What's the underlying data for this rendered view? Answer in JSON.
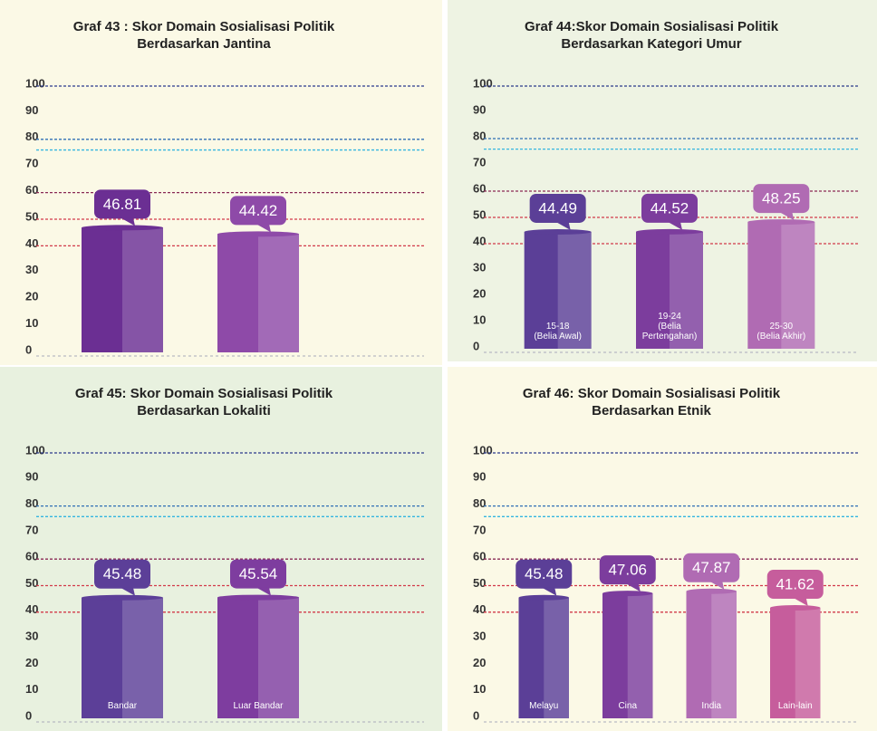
{
  "chart_data": [
    {
      "type": "bar",
      "title": "Graf 43 :  Skor Domain Sosialisasi Politik Berdasarkan Jantina",
      "categories": [
        null,
        null
      ],
      "values": [
        46.81,
        44.42
      ],
      "colors": [
        "#6b2f93",
        "#8e4aa8"
      ],
      "ylim": [
        0,
        100
      ],
      "yticks": [
        0,
        10,
        20,
        30,
        40,
        50,
        60,
        70,
        80,
        90,
        100
      ],
      "reference_lines": [
        {
          "value": 100,
          "color": "#2b3a8c"
        },
        {
          "value": 80,
          "color": "#2f6fb5"
        },
        {
          "value": 76,
          "color": "#35b6e0"
        },
        {
          "value": 60,
          "color": "#8a2a55"
        },
        {
          "value": 50,
          "color": "#d23a4a"
        },
        {
          "value": 40,
          "color": "#d23a4a"
        }
      ]
    },
    {
      "type": "bar",
      "title": "Graf 44:Skor Domain Sosialisasi Politik Berdasarkan Kategori Umur",
      "categories": [
        "15-18\n(Belia Awal)",
        "19-24\n(Belia\nPertengahan)",
        "25-30\n(Belia Akhir)"
      ],
      "values": [
        44.49,
        44.52,
        48.25
      ],
      "colors": [
        "#5b3f97",
        "#7c3d9d",
        "#b06bb3"
      ],
      "ylim": [
        0,
        100
      ],
      "yticks": [
        0,
        10,
        20,
        30,
        40,
        50,
        60,
        70,
        80,
        90,
        100
      ],
      "reference_lines": [
        {
          "value": 100,
          "color": "#2b3a8c"
        },
        {
          "value": 80,
          "color": "#2f6fb5"
        },
        {
          "value": 76,
          "color": "#35b6e0"
        },
        {
          "value": 60,
          "color": "#8a2a55"
        },
        {
          "value": 50,
          "color": "#d23a4a"
        },
        {
          "value": 40,
          "color": "#d23a4a"
        }
      ]
    },
    {
      "type": "bar",
      "title": "Graf 45: Skor Domain Sosialisasi Politik Berdasarkan Lokaliti",
      "categories": [
        "Bandar",
        "Luar Bandar"
      ],
      "values": [
        45.48,
        45.54
      ],
      "colors": [
        "#5c3f98",
        "#7e3d9f"
      ],
      "ylim": [
        0,
        100
      ],
      "yticks": [
        0,
        10,
        20,
        30,
        40,
        50,
        60,
        70,
        80,
        90,
        100
      ],
      "reference_lines": [
        {
          "value": 100,
          "color": "#2b3a8c"
        },
        {
          "value": 80,
          "color": "#2f6fb5"
        },
        {
          "value": 76,
          "color": "#35b6e0"
        },
        {
          "value": 60,
          "color": "#8a2a55"
        },
        {
          "value": 50,
          "color": "#d23a4a"
        },
        {
          "value": 40,
          "color": "#d23a4a"
        }
      ]
    },
    {
      "type": "bar",
      "title": "Graf 46: Skor Domain Sosialisasi Politik Berdasarkan Etnik",
      "categories": [
        "Melayu",
        "Cina",
        "India",
        "Lain-lain"
      ],
      "values": [
        45.48,
        47.06,
        47.87,
        41.62
      ],
      "colors": [
        "#5b3f97",
        "#7c3d9d",
        "#b06bb3",
        "#c65d9c"
      ],
      "ylim": [
        0,
        100
      ],
      "yticks": [
        0,
        10,
        20,
        30,
        40,
        50,
        60,
        70,
        80,
        90,
        100
      ],
      "reference_lines": [
        {
          "value": 100,
          "color": "#2b3a8c"
        },
        {
          "value": 80,
          "color": "#2f6fb5"
        },
        {
          "value": 76,
          "color": "#35b6e0"
        },
        {
          "value": 60,
          "color": "#8a2a55"
        },
        {
          "value": 50,
          "color": "#d23a4a"
        },
        {
          "value": 40,
          "color": "#d23a4a"
        }
      ]
    }
  ]
}
